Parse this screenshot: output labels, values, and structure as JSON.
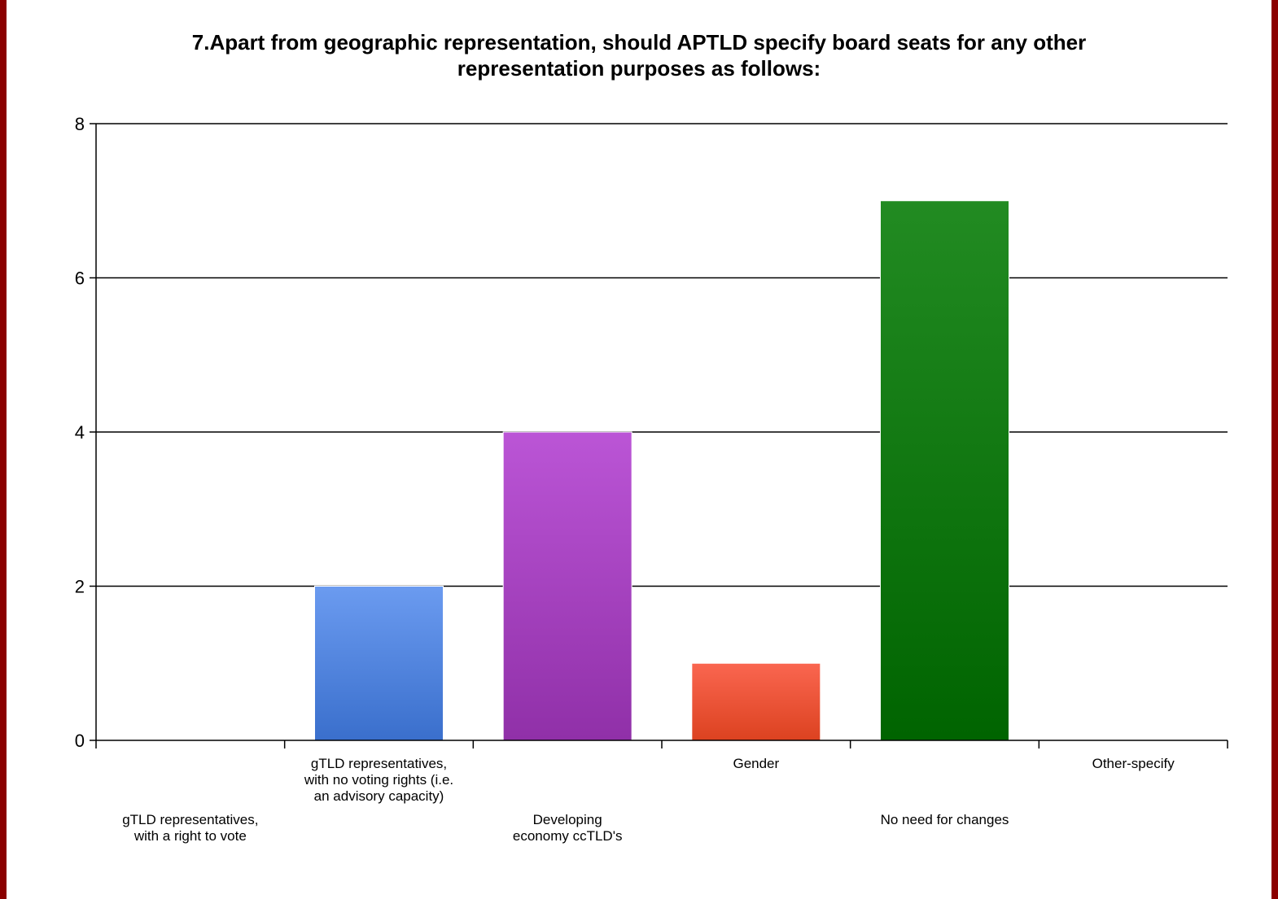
{
  "chart_data": {
    "type": "bar",
    "title_lines": [
      "7.Apart from geographic representation, should APTLD specify board seats for any other",
      "representation purposes as follows:"
    ],
    "categories": [
      [
        "gTLD representatives,",
        "with a right to vote"
      ],
      [
        "gTLD representatives,",
        "with no voting rights (i.e.",
        "an advisory capacity)"
      ],
      [
        "Developing",
        "economy ccTLD's"
      ],
      [
        "Gender"
      ],
      [
        "No need for changes"
      ],
      [
        "Other-specify"
      ]
    ],
    "values": [
      0,
      2,
      4,
      1,
      7,
      0
    ],
    "colors": [
      [
        "#6b9bf0",
        "#3a6fcc"
      ],
      [
        "#6b9bf0",
        "#3a6fcc"
      ],
      [
        "#bb55d6",
        "#9030a8"
      ],
      [
        "#fa6650",
        "#dc4220"
      ],
      [
        "#228b22",
        "#006400"
      ],
      [
        "#999999",
        "#777777"
      ]
    ],
    "ylim": [
      0,
      8
    ],
    "yticks": [
      0,
      2,
      4,
      6,
      8
    ],
    "grid": true
  }
}
